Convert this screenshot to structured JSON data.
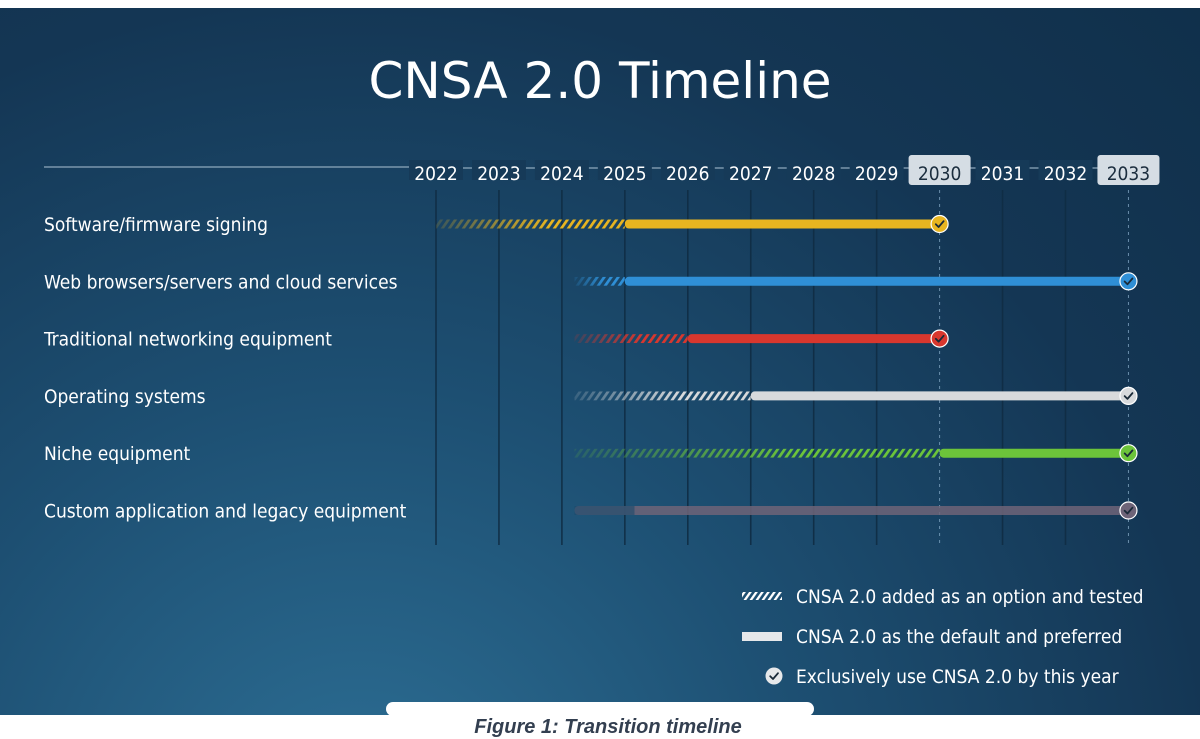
{
  "chart_data": {
    "type": "timeline",
    "title": "CNSA 2.0 Timeline",
    "years": [
      "2022",
      "2023",
      "2024",
      "2025",
      "2026",
      "2027",
      "2028",
      "2029",
      "2030",
      "2031",
      "2032",
      "2033"
    ],
    "highlighted_years": [
      "2030",
      "2033"
    ],
    "rows": [
      {
        "label": "Software/firmware signing",
        "color": "#e8b520",
        "option_start": 2022,
        "default_start": 2025,
        "exclusive_year": 2030
      },
      {
        "label": "Web browsers/servers and cloud services",
        "color": "#2f8fd6",
        "option_start": 2024.2,
        "default_start": 2025,
        "exclusive_year": 2033
      },
      {
        "label": "Traditional networking equipment",
        "color": "#d8372e",
        "option_start": 2024.2,
        "default_start": 2026,
        "exclusive_year": 2030
      },
      {
        "label": "Operating systems",
        "color": "#d8dadc",
        "option_start": 2024.2,
        "default_start": 2027,
        "exclusive_year": 2033
      },
      {
        "label": "Niche equipment",
        "color": "#6cc43a",
        "option_start": 2024.2,
        "default_start": 2030,
        "exclusive_year": 2033
      },
      {
        "label": "Custom application and legacy equipment",
        "color": "#6e6478",
        "option_start": 2024.2,
        "default_start": 2024.2,
        "exclusive_year": 2033
      }
    ],
    "legend": [
      {
        "kind": "hatched",
        "label": "CNSA 2.0 added as an option and tested"
      },
      {
        "kind": "solid",
        "label": "CNSA 2.0 as the default and preferred"
      },
      {
        "kind": "check",
        "label": "Exclusively use CNSA 2.0 by this year"
      }
    ]
  },
  "caption": "Figure 1: Transition timeline"
}
